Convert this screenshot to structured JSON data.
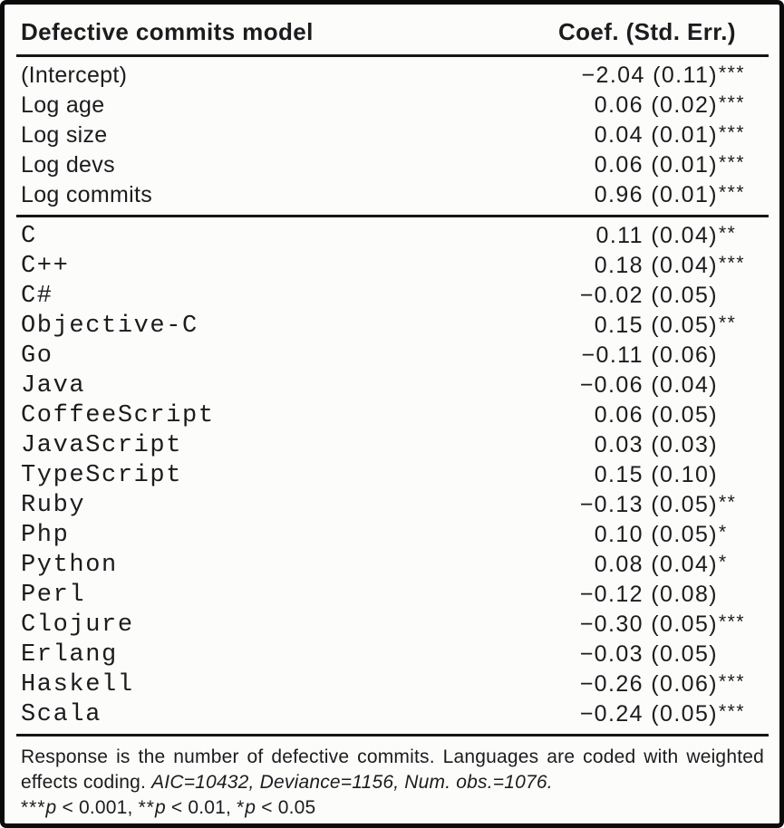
{
  "table": {
    "header": {
      "model_col": "Defective commits model",
      "coef_col": "Coef. (Std. Err.)"
    },
    "model_rows": [
      {
        "label": "(Intercept)",
        "value": "−2.04 (0.11)",
        "stars": "***"
      },
      {
        "label": "Log age",
        "value": "0.06 (0.02)",
        "stars": "***"
      },
      {
        "label": "Log size",
        "value": "0.04 (0.01)",
        "stars": "***"
      },
      {
        "label": "Log devs",
        "value": "0.06 (0.01)",
        "stars": "***"
      },
      {
        "label": "Log commits",
        "value": "0.96 (0.01)",
        "stars": "***"
      }
    ],
    "language_rows": [
      {
        "label": "C",
        "value": "0.11 (0.04)",
        "stars": "**"
      },
      {
        "label": "C++",
        "value": "0.18 (0.04)",
        "stars": "***"
      },
      {
        "label": "C#",
        "value": "−0.02 (0.05)",
        "stars": ""
      },
      {
        "label": "Objective-C",
        "value": "0.15 (0.05)",
        "stars": "**"
      },
      {
        "label": "Go",
        "value": "−0.11 (0.06)",
        "stars": ""
      },
      {
        "label": "Java",
        "value": "−0.06 (0.04)",
        "stars": ""
      },
      {
        "label": "CoffeeScript",
        "value": "0.06 (0.05)",
        "stars": ""
      },
      {
        "label": "JavaScript",
        "value": "0.03 (0.03)",
        "stars": ""
      },
      {
        "label": "TypeScript",
        "value": "0.15 (0.10)",
        "stars": ""
      },
      {
        "label": "Ruby",
        "value": "−0.13 (0.05)",
        "stars": "**"
      },
      {
        "label": "Php",
        "value": "0.10 (0.05)",
        "stars": "*"
      },
      {
        "label": "Python",
        "value": "0.08 (0.04)",
        "stars": "*"
      },
      {
        "label": "Perl",
        "value": "−0.12 (0.08)",
        "stars": ""
      },
      {
        "label": "Clojure",
        "value": "−0.30 (0.05)",
        "stars": "***"
      },
      {
        "label": "Erlang",
        "value": "−0.03 (0.05)",
        "stars": ""
      },
      {
        "label": "Haskell",
        "value": "−0.26 (0.06)",
        "stars": "***"
      },
      {
        "label": "Scala",
        "value": "−0.24 (0.05)",
        "stars": "***"
      }
    ],
    "footnote": {
      "description": "Response is the number of defective commits. Languages are coded with weighted effects coding.",
      "stats": "AIC=10432, Deviance=1156, Num. obs.=1076.",
      "significance": {
        "s1_stars": "***",
        "s1_p": "p",
        "s1_rest": " < 0.001, ",
        "s2_stars": "**",
        "s2_p": "p",
        "s2_rest": " < 0.01, ",
        "s3_stars": "*",
        "s3_p": "p",
        "s3_rest": " < 0.05"
      }
    }
  },
  "colors": {
    "text": "#1c1c1e",
    "rule": "#161616",
    "frame": "#0b0b0b",
    "background": "#fcfcfb"
  }
}
